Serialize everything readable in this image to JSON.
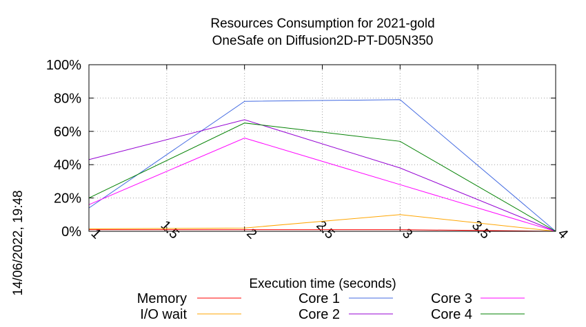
{
  "timestamp": "14/06/2022, 19:48",
  "chart_data": {
    "type": "line",
    "title_lines": [
      "Resources Consumption for 2021-gold",
      "OneSafe on Diffusion2D-PT-D05N350"
    ],
    "xlabel": "Execution time (seconds)",
    "ylabel": "",
    "xlim": [
      1,
      4
    ],
    "ylim": [
      0,
      100
    ],
    "x_ticks": [
      "1",
      "1.5",
      "2",
      "2.5",
      "3",
      "3.5",
      "4"
    ],
    "y_ticks": [
      "0%",
      "20%",
      "40%",
      "60%",
      "80%",
      "100%"
    ],
    "grid": true,
    "legend_position": "bottom",
    "x": [
      1,
      2,
      3,
      4
    ],
    "series": [
      {
        "name": "Memory",
        "color": "#ff0000",
        "values": [
          1,
          1,
          1,
          0
        ]
      },
      {
        "name": "I/O wait",
        "color": "#ffa500",
        "values": [
          1.5,
          2,
          10,
          0
        ]
      },
      {
        "name": "Core 1",
        "color": "#4169e1",
        "values": [
          14,
          78,
          79,
          0
        ]
      },
      {
        "name": "Core 2",
        "color": "#9400d3",
        "values": [
          43,
          67,
          38,
          0
        ]
      },
      {
        "name": "Core 3",
        "color": "#ff00ff",
        "values": [
          16,
          56,
          28,
          0
        ]
      },
      {
        "name": "Core 4",
        "color": "#008000",
        "values": [
          20,
          65,
          54,
          0
        ]
      }
    ]
  }
}
